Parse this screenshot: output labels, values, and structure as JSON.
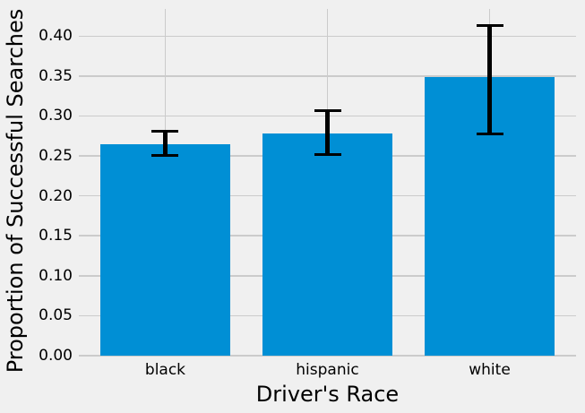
{
  "colors": {
    "background": "#f0f0f0",
    "grid": "#cbcbcb",
    "bar": "#008fd5",
    "error_bar": "#000000",
    "text": "#000000"
  },
  "chart_data": {
    "type": "bar",
    "title": "",
    "xlabel": "Driver's Race",
    "ylabel": "Proportion of Successful Searches",
    "categories": [
      "black",
      "hispanic",
      "white"
    ],
    "values": [
      0.265,
      0.278,
      0.349
    ],
    "error_low": [
      0.251,
      0.252,
      0.277
    ],
    "error_high": [
      0.281,
      0.307,
      0.413
    ],
    "yticks": [
      0,
      0.05,
      0.1,
      0.15,
      0.2,
      0.25,
      0.3,
      0.35,
      0.4
    ],
    "ytick_labels": [
      "0.00",
      "0.05",
      "0.10",
      "0.15",
      "0.20",
      "0.25",
      "0.30",
      "0.35",
      "0.40"
    ],
    "ylim": [
      0,
      0.434
    ],
    "xlim_pad": 0.533,
    "bar_width_fraction": 0.8,
    "grid": true,
    "legend": "none"
  }
}
